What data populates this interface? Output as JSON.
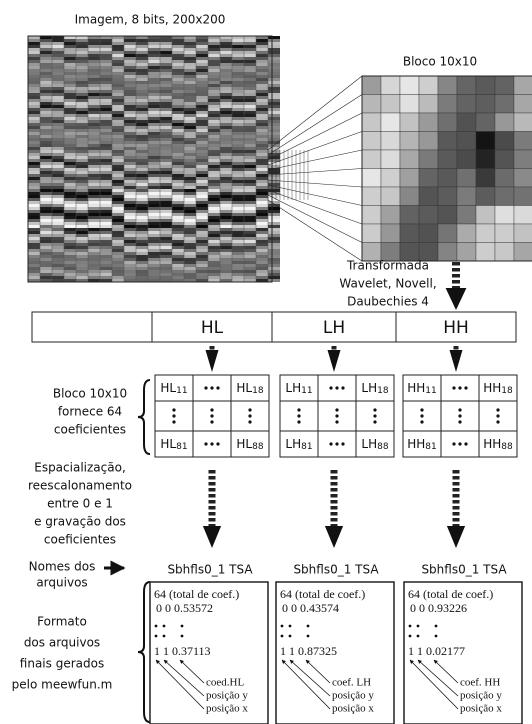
{
  "image_title": "Imagem, 8 bits, 200x200",
  "block_title": "Bloco 10x10",
  "transform_label": [
    "Transformada",
    "Wavelet, Novell,",
    "Daubechies 4"
  ],
  "bands": [
    "HL",
    "LH",
    "HH"
  ],
  "matrices": [
    {
      "top_left": {
        "base": "HL",
        "index": "11"
      },
      "top_right": {
        "base": "HL",
        "index": "18"
      },
      "bottom_left": {
        "base": "HL",
        "index": "81"
      },
      "bottom_right": {
        "base": "HL",
        "index": "88"
      }
    },
    {
      "top_left": {
        "base": "LH",
        "index": "11"
      },
      "top_right": {
        "base": "LH",
        "index": "18"
      },
      "bottom_left": {
        "base": "LH",
        "index": "81"
      },
      "bottom_right": {
        "base": "LH",
        "index": "88"
      }
    },
    {
      "top_left": {
        "base": "HH",
        "index": "11"
      },
      "top_right": {
        "base": "HH",
        "index": "18"
      },
      "bottom_left": {
        "base": "HH",
        "index": "81"
      },
      "bottom_right": {
        "base": "HH",
        "index": "88"
      }
    }
  ],
  "labels": {
    "block": [
      "Bloco 10x10",
      "fornece 64",
      "coeficientes"
    ],
    "process": [
      "Espacialização,",
      "reescalonamento",
      "entre 0 e 1",
      "e gravação dos",
      "coeficientes"
    ],
    "names": [
      "Nomes dos",
      "arquivos"
    ],
    "format": [
      "Formato",
      "dos arquivos",
      "finais gerados",
      "pelo meewfun.m"
    ]
  },
  "files": [
    {
      "name": "Sbhfls0_1 TSA",
      "header": "64 (total de coef.)",
      "first_line": "0 0 0.53572",
      "last_line": "1 1 0.37113",
      "notes": [
        "coed.HL",
        "posição y",
        "posição x"
      ]
    },
    {
      "name": "Sbhfls0_1 TSA",
      "header": "64 (total de coef.)",
      "first_line": "0 0 0.43574",
      "last_line": "1 1 0.87325",
      "notes": [
        "coef. LH",
        "posição y",
        "posição x"
      ]
    },
    {
      "name": "Sbhfls0_1 TSA",
      "header": "64 (total de coef.)",
      "first_line": "0 0 0.93226",
      "last_line": "1 1 0.02177",
      "notes": [
        "coef. HH",
        "posição y",
        "posição x"
      ]
    }
  ]
}
